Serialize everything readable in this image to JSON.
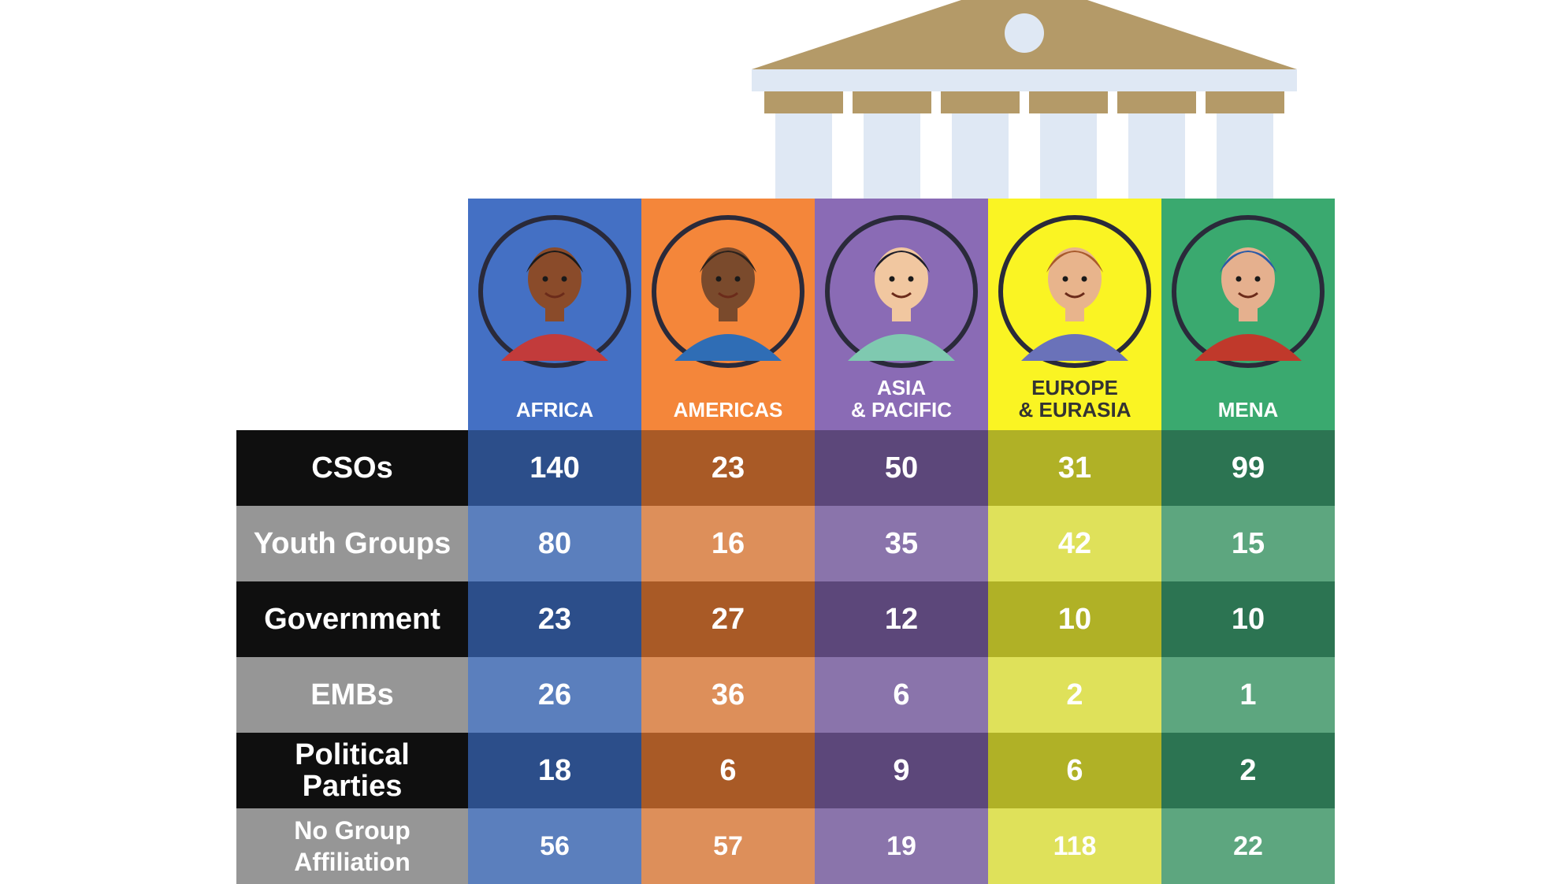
{
  "chart_data": {
    "type": "table",
    "columns": [
      {
        "name": "AFRICA",
        "color": "#4470c4",
        "dark": "#2c4e8a",
        "light": "#5b7fbd",
        "avatar": "africa-person-avatar"
      },
      {
        "name": "AMERICAS",
        "color": "#f4863a",
        "dark": "#a95a26",
        "light": "#dd8f5a",
        "avatar": "americas-person-avatar"
      },
      {
        "name": "ASIA\n& PACIFIC",
        "color": "#8a6bb5",
        "dark": "#5c477a",
        "light": "#8a74ab",
        "avatar": "asia-pacific-person-avatar"
      },
      {
        "name": "EUROPE\n& EURASIA",
        "color": "#faf423",
        "dark": "#b0b126",
        "light": "#dfe15a",
        "avatar": "europe-eurasia-person-avatar"
      },
      {
        "name": "MENA",
        "color": "#3aa96f",
        "dark": "#2c7452",
        "light": "#5da67f",
        "avatar": "mena-person-avatar"
      }
    ],
    "rows": [
      {
        "label": "CSOs",
        "values": [
          140,
          23,
          50,
          31,
          99
        ]
      },
      {
        "label": "Youth Groups",
        "values": [
          80,
          16,
          35,
          42,
          15
        ]
      },
      {
        "label": "Government",
        "values": [
          23,
          27,
          12,
          10,
          10
        ]
      },
      {
        "label": "EMBs",
        "values": [
          26,
          36,
          6,
          2,
          1
        ]
      },
      {
        "label": "Political\nParties",
        "values": [
          18,
          6,
          9,
          6,
          2
        ]
      },
      {
        "label": "No Group\nAffiliation",
        "values": [
          56,
          57,
          19,
          118,
          22
        ]
      }
    ],
    "row_label_colors": {
      "odd": "#0f0f0f",
      "even": "#969696"
    },
    "building_colors": {
      "roof": "#b49a68",
      "column": "#dfe8f4"
    }
  }
}
